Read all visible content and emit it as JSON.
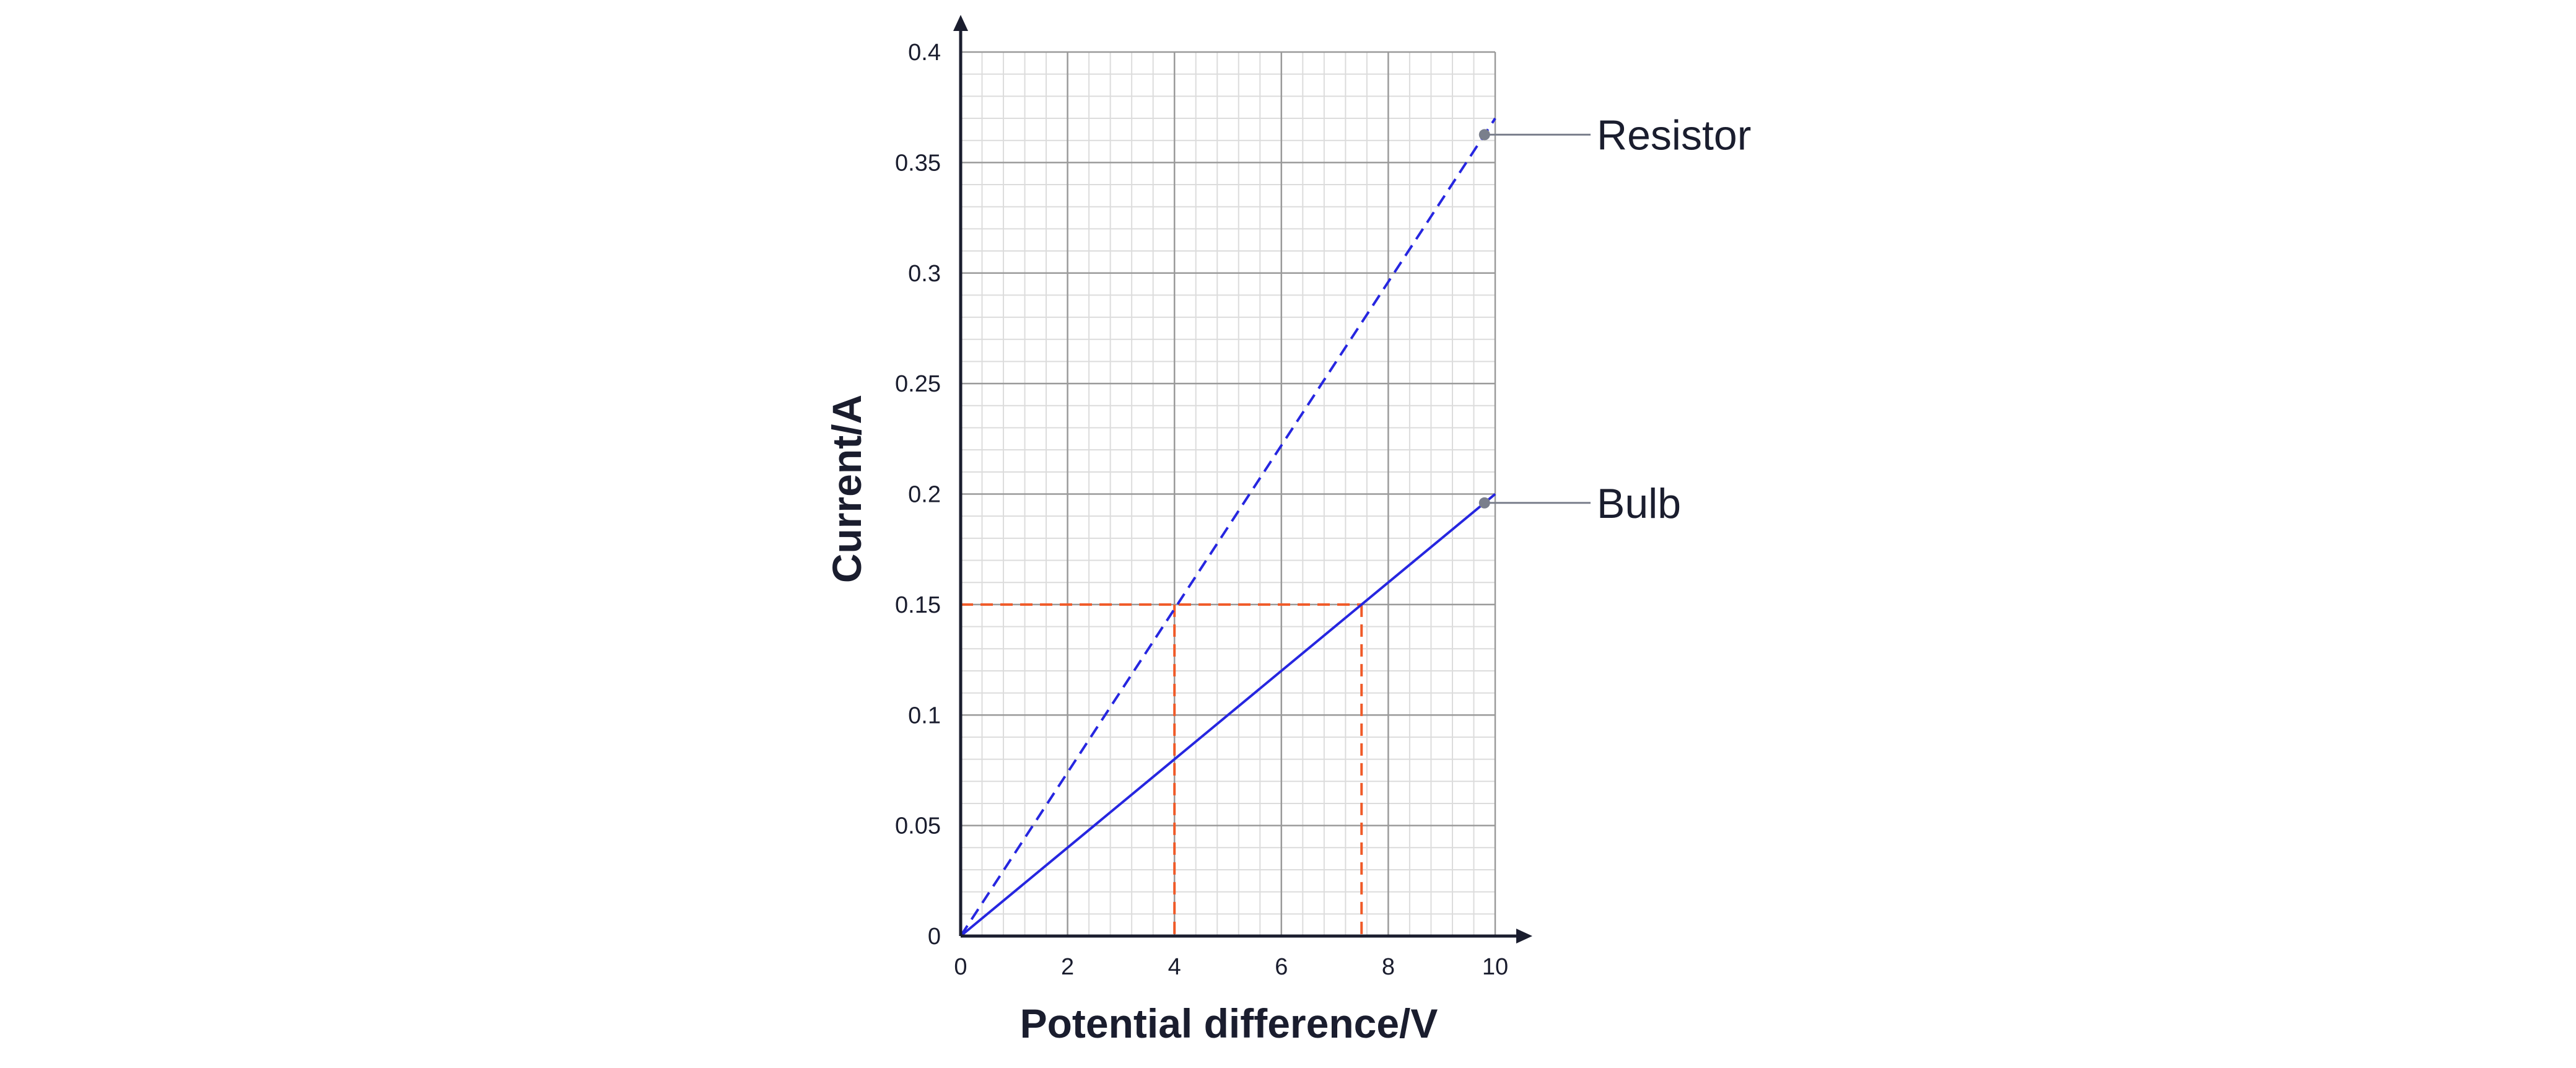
{
  "chart_data": {
    "type": "line",
    "xlabel": "Potential difference/V",
    "ylabel": "Current/A",
    "xlim": [
      0,
      10
    ],
    "ylim": [
      0,
      0.4
    ],
    "x_ticks": [
      0,
      2,
      4,
      6,
      8,
      10
    ],
    "x_tick_labels": [
      "0",
      "2",
      "4",
      "6",
      "8",
      "10"
    ],
    "y_ticks": [
      0,
      0.05,
      0.1,
      0.15,
      0.2,
      0.25,
      0.3,
      0.35,
      0.4
    ],
    "y_tick_labels": [
      "0",
      "0.05",
      "0.1",
      "0.15",
      "0.2",
      "0.25",
      "0.3",
      "0.35",
      "0.4"
    ],
    "grid": true,
    "minor_grid_per_major": 5,
    "series": [
      {
        "name": "Resistor",
        "style": "dashed",
        "color": "#2626e0",
        "x": [
          0,
          10
        ],
        "y": [
          0,
          0.37
        ],
        "label_point": [
          9.8,
          0.3626
        ]
      },
      {
        "name": "Bulb",
        "style": "solid",
        "color": "#2626e0",
        "x": [
          0,
          10
        ],
        "y": [
          0,
          0.2
        ],
        "label_point": [
          9.8,
          0.196
        ]
      }
    ],
    "reference_lines": {
      "color": "#f05a28",
      "y_value": 0.15,
      "x_values": [
        4,
        7.5
      ]
    },
    "colors": {
      "axis": "#1a1d2e",
      "major_grid": "#9a9a9a",
      "minor_grid": "#dcdcdc",
      "marker": "#7a7f8c",
      "leader_line": "#7a7f8c"
    }
  }
}
